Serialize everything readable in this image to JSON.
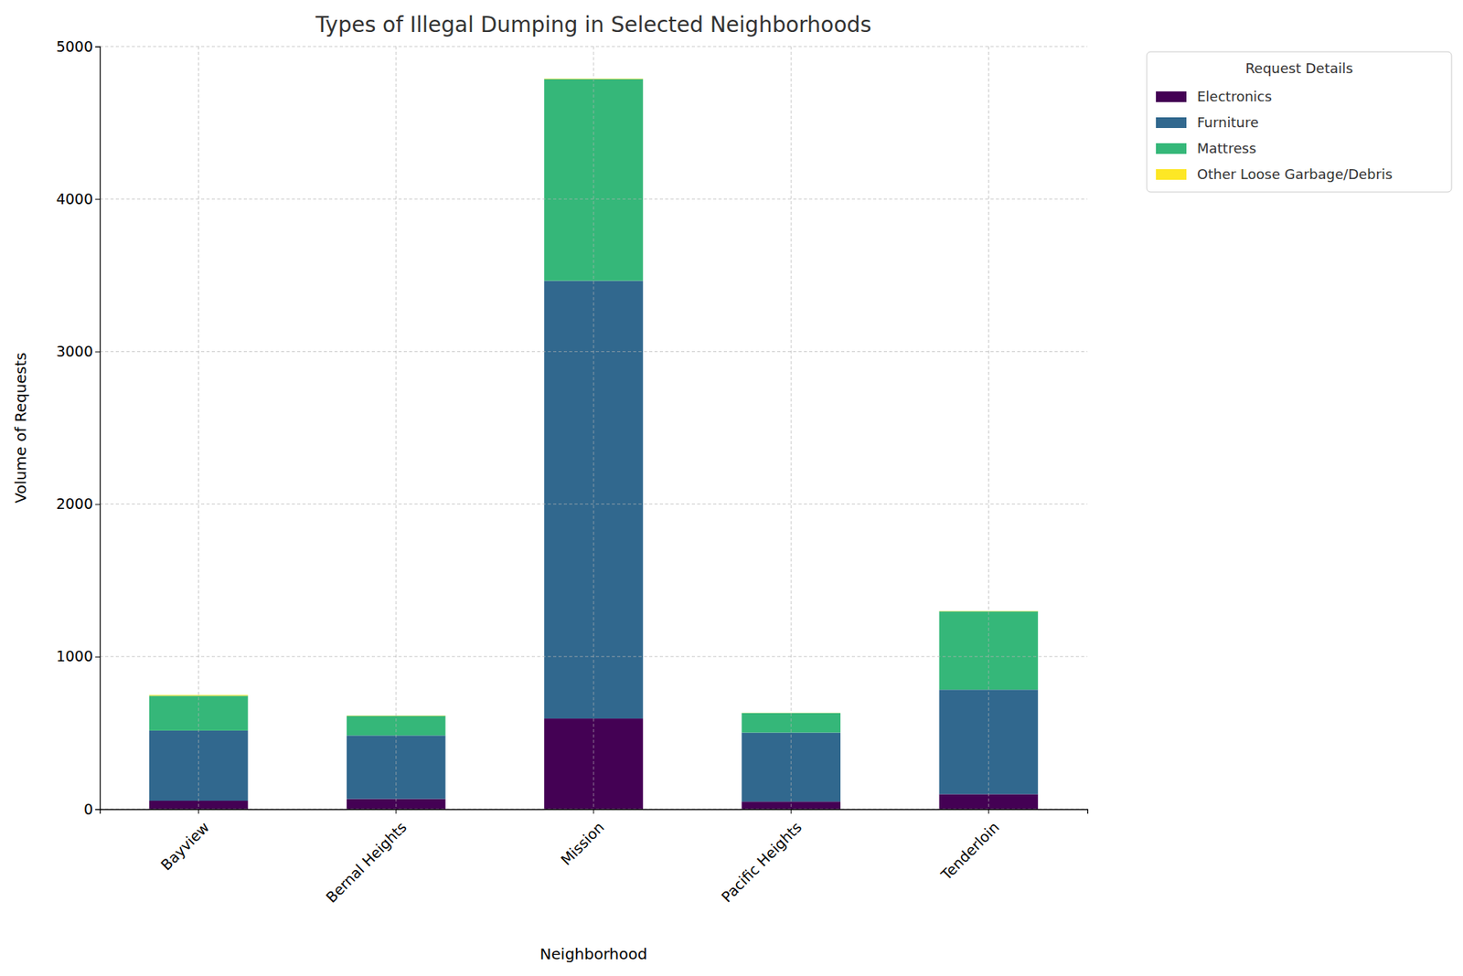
{
  "chart_data": {
    "type": "bar",
    "stacked": true,
    "title": "Types of Illegal Dumping in Selected Neighborhoods",
    "x_label": "Neighborhood",
    "y_label": "Volume of Requests",
    "legend_title": "Request Details",
    "legend": "right",
    "categories": [
      "Bayview",
      "Bernal Heights",
      "Mission",
      "Pacific Heights",
      "Tenderloin"
    ],
    "series": [
      {
        "name": "Electronics",
        "color": "#440154",
        "values": [
          55,
          67,
          594,
          49,
          98
        ]
      },
      {
        "name": "Furniture",
        "color": "#31688e",
        "values": [
          460,
          416,
          2870,
          453,
          685
        ]
      },
      {
        "name": "Mattress",
        "color": "#35b779",
        "values": [
          228,
          129,
          1322,
          128,
          514
        ]
      },
      {
        "name": "Other Loose Garbage/Debris",
        "color": "#fde725",
        "values": [
          5,
          2,
          3,
          1,
          2
        ]
      }
    ],
    "ylim": [
      0,
      5000
    ],
    "yticks": [
      0,
      1000,
      2000,
      3000,
      4000,
      5000
    ],
    "grid": true
  }
}
